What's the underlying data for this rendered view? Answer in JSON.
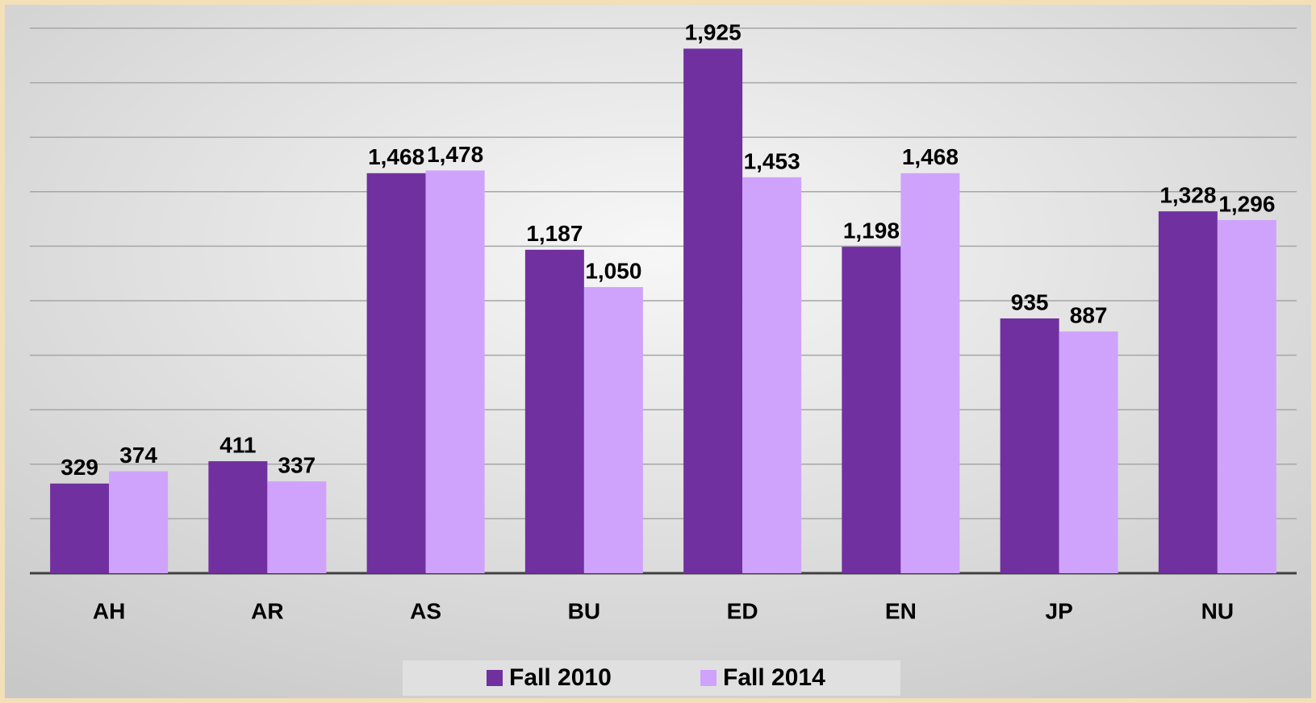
{
  "chart_data": {
    "type": "bar",
    "categories": [
      "AH",
      "AR",
      "AS",
      "BU",
      "ED",
      "EN",
      "JP",
      "NU"
    ],
    "series": [
      {
        "name": "Fall 2010",
        "color": "#7030a0",
        "values": [
          329,
          411,
          1468,
          1187,
          1925,
          1198,
          935,
          1328
        ],
        "value_labels": [
          "329",
          "411",
          "1,468",
          "1,187",
          "1,925",
          "1,198",
          "935",
          "1,328"
        ]
      },
      {
        "name": "Fall 2014",
        "color": "#cfa3fb",
        "values": [
          374,
          337,
          1478,
          1050,
          1453,
          1468,
          887,
          1296
        ],
        "value_labels": [
          "374",
          "337",
          "1,478",
          "1,050",
          "1,453",
          "1,468",
          "887",
          "1,296"
        ]
      }
    ],
    "ylim": [
      0,
      2000
    ],
    "yticks": [
      0,
      200,
      400,
      600,
      800,
      1000,
      1200,
      1400,
      1600,
      1800,
      2000
    ],
    "grid": true,
    "legend": "bottom"
  }
}
